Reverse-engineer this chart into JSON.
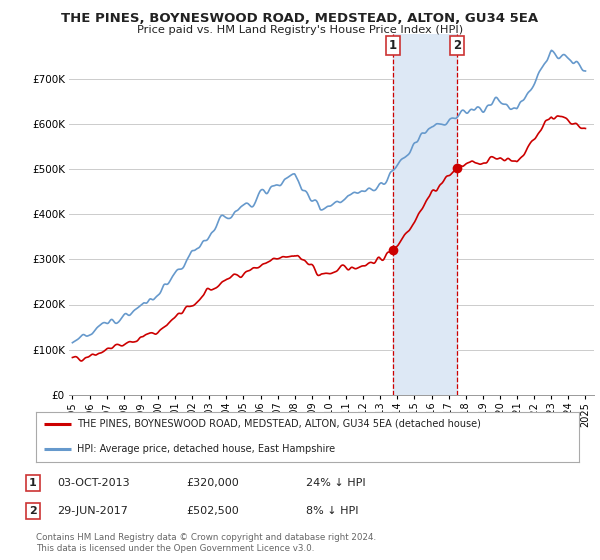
{
  "title": "THE PINES, BOYNESWOOD ROAD, MEDSTEAD, ALTON, GU34 5EA",
  "subtitle": "Price paid vs. HM Land Registry's House Price Index (HPI)",
  "legend_label_red": "THE PINES, BOYNESWOOD ROAD, MEDSTEAD, ALTON, GU34 5EA (detached house)",
  "legend_label_blue": "HPI: Average price, detached house, East Hampshire",
  "footnote": "Contains HM Land Registry data © Crown copyright and database right 2024.\nThis data is licensed under the Open Government Licence v3.0.",
  "sale1_label": "1",
  "sale1_date": "03-OCT-2013",
  "sale1_price": "£320,000",
  "sale1_hpi": "24% ↓ HPI",
  "sale2_label": "2",
  "sale2_date": "29-JUN-2017",
  "sale2_price": "£502,500",
  "sale2_hpi": "8% ↓ HPI",
  "sale1_x": 2013.75,
  "sale2_x": 2017.5,
  "sale1_y_red": 320000,
  "sale2_y_red": 502500,
  "ylim": [
    0,
    800000
  ],
  "xlim": [
    1994.8,
    2025.5
  ],
  "yticks": [
    0,
    100000,
    200000,
    300000,
    400000,
    500000,
    600000,
    700000
  ],
  "ytick_labels": [
    "£0",
    "£100K",
    "£200K",
    "£300K",
    "£400K",
    "£500K",
    "£600K",
    "£700K"
  ],
  "xticks": [
    1995,
    1996,
    1997,
    1998,
    1999,
    2000,
    2001,
    2002,
    2003,
    2004,
    2005,
    2006,
    2007,
    2008,
    2009,
    2010,
    2011,
    2012,
    2013,
    2014,
    2015,
    2016,
    2017,
    2018,
    2019,
    2020,
    2021,
    2022,
    2023,
    2024,
    2025
  ],
  "red_color": "#cc0000",
  "blue_color": "#6699cc",
  "shade_color": "#dde8f5",
  "vline_color": "#cc0000",
  "grid_color": "#cccccc",
  "bg_color": "#ffffff"
}
